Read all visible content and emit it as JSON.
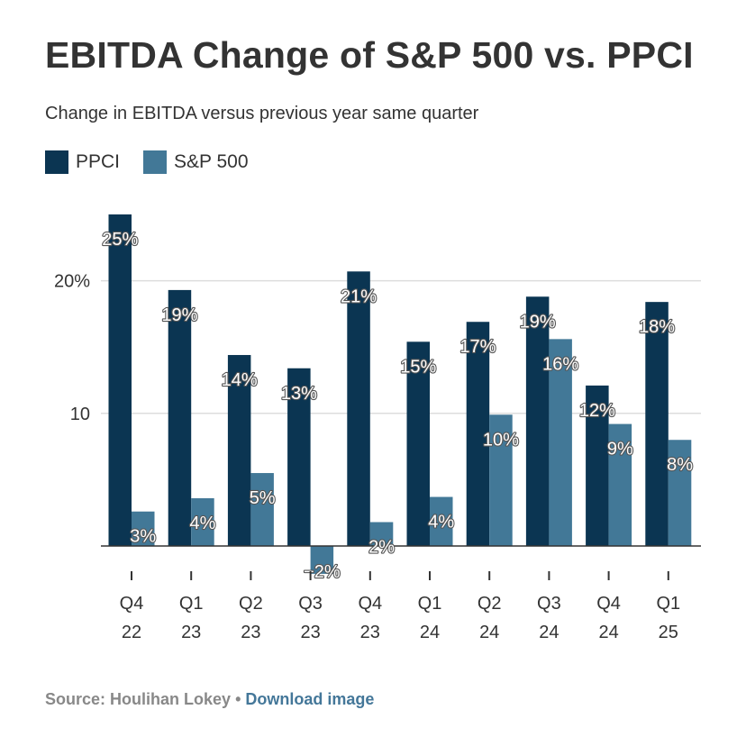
{
  "header": {
    "title": "EBITDA Change of S&P 500 vs. PPCI",
    "subtitle": "Change in EBITDA versus previous year same quarter"
  },
  "footer": {
    "source": "Source: Houlihan Lokey",
    "separator": "•",
    "download_label": "Download image"
  },
  "colors": {
    "ppci": "#0b3552",
    "sp500": "#427897",
    "grid": "#dddddd",
    "axis": "#333333"
  },
  "chart_data": {
    "type": "bar",
    "categories": [
      [
        "Q4",
        "22"
      ],
      [
        "Q1",
        "23"
      ],
      [
        "Q2",
        "23"
      ],
      [
        "Q3",
        "23"
      ],
      [
        "Q4",
        "23"
      ],
      [
        "Q1",
        "24"
      ],
      [
        "Q2",
        "24"
      ],
      [
        "Q3",
        "24"
      ],
      [
        "Q4",
        "24"
      ],
      [
        "Q1",
        "25"
      ]
    ],
    "series": [
      {
        "name": "PPCI",
        "values": [
          25,
          19.3,
          14.4,
          13.4,
          20.7,
          15.4,
          16.9,
          18.8,
          12.1,
          18.4
        ],
        "labels": [
          "25%",
          "19%",
          "14%",
          "13%",
          "21%",
          "15%",
          "17%",
          "19%",
          "12%",
          "18%"
        ]
      },
      {
        "name": "S&P 500",
        "values": [
          2.6,
          3.6,
          5.5,
          -2.1,
          1.8,
          3.7,
          9.9,
          15.6,
          9.2,
          8.0
        ],
        "labels": [
          "3%",
          "4%",
          "5%",
          "-2%",
          "2%",
          "4%",
          "10%",
          "16%",
          "9%",
          "8%"
        ]
      }
    ],
    "y_ticks": [
      {
        "value": 10,
        "label": "10"
      },
      {
        "value": 20,
        "label": "20%"
      }
    ],
    "ylim": [
      -2.5,
      25
    ],
    "grid": true,
    "legend": "top-left"
  }
}
